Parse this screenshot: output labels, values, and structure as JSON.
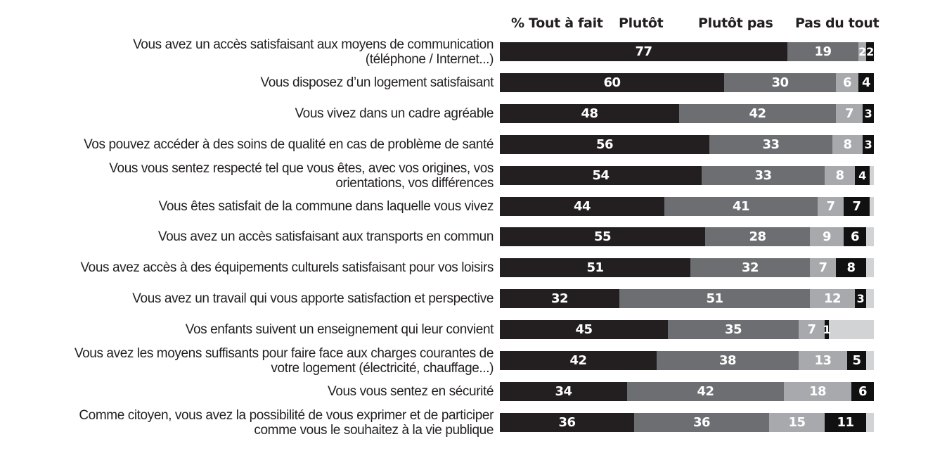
{
  "chart_data": {
    "type": "bar",
    "orientation": "horizontal",
    "stacked": true,
    "title": "",
    "xlabel": "",
    "ylabel": "",
    "xlim": [
      0,
      100
    ],
    "legend_position": "top",
    "legend": [
      "% Tout à fait",
      "Plutôt",
      "Plutôt pas",
      "Pas du tout"
    ],
    "series_colors": [
      "#231f20",
      "#6d6e71",
      "#a7a9ac",
      "#111111"
    ],
    "remainder_color": "#d1d3d4",
    "categories": [
      [
        "Vous avez un accès satisfaisant aux moyens de communication",
        "(téléphone / Internet...)"
      ],
      [
        "Vous disposez d’un logement satisfaisant"
      ],
      [
        "Vous vivez dans un cadre agréable"
      ],
      [
        "Vos pouvez accéder à des soins de qualité en cas de problème de santé"
      ],
      [
        "Vous vous sentez respecté tel que vous êtes, avec vos origines, vos",
        "orientations, vos différences"
      ],
      [
        "Vous êtes satisfait de la commune dans laquelle vous vivez"
      ],
      [
        "Vous avez un accès satisfaisant aux transports en commun"
      ],
      [
        "Vous avez accès à des équipements culturels satisfaisant pour vos loisirs"
      ],
      [
        "Vous avez un travail qui vous apporte satisfaction et perspective"
      ],
      [
        "Vos enfants suivent un enseignement qui leur convient"
      ],
      [
        "Vous avez les moyens suffisants pour faire face aux charges courantes de",
        "votre logement (électricité, chauffage...)"
      ],
      [
        "Vous vous sentez en sécurité"
      ],
      [
        "Comme citoyen, vous avez la  possibilité de vous exprimer et de participer",
        "comme vous le souhaitez à la vie publique"
      ]
    ],
    "series": [
      {
        "name": "% Tout à fait",
        "values": [
          77,
          60,
          48,
          56,
          54,
          44,
          55,
          51,
          32,
          45,
          42,
          34,
          36
        ]
      },
      {
        "name": "Plutôt",
        "values": [
          19,
          30,
          42,
          33,
          33,
          41,
          28,
          32,
          51,
          35,
          38,
          42,
          36
        ]
      },
      {
        "name": "Plutôt pas",
        "values": [
          2,
          6,
          7,
          8,
          8,
          7,
          9,
          7,
          12,
          7,
          13,
          18,
          15
        ]
      },
      {
        "name": "Pas du tout",
        "values": [
          2,
          4,
          3,
          3,
          4,
          7,
          6,
          8,
          3,
          1,
          5,
          6,
          11
        ]
      }
    ]
  }
}
